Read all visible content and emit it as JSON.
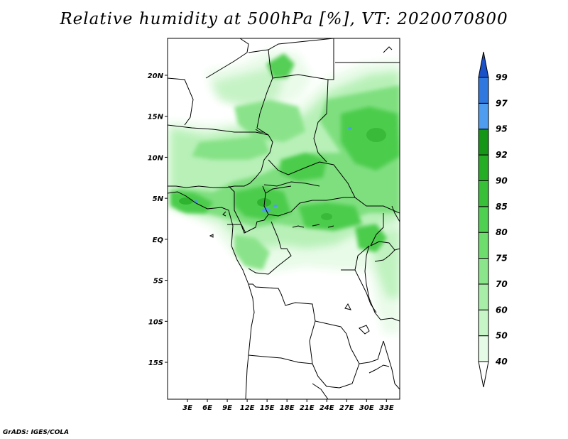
{
  "title": "Relative humidity at 500hPa [%], VT: 2020070800",
  "credit": "GrADS: IGES/COLA",
  "chart_data": {
    "type": "heatmap",
    "variable": "Relative humidity at 500hPa",
    "units": "%",
    "valid_time": "2020070800",
    "lon_range": [
      0,
      35
    ],
    "lat_range": [
      -19.5,
      24.5
    ],
    "lon_ticks": [
      "3E",
      "6E",
      "9E",
      "12E",
      "15E",
      "18E",
      "21E",
      "24E",
      "27E",
      "30E",
      "33E"
    ],
    "lat_ticks": [
      "20N",
      "15N",
      "10N",
      "5N",
      "EQ",
      "5S",
      "10S",
      "15S"
    ],
    "colorbar": {
      "levels": [
        "40",
        "50",
        "60",
        "70",
        "75",
        "80",
        "85",
        "90",
        "92",
        "95",
        "97",
        "99"
      ],
      "colors": [
        "#ffffff",
        "#e6fbe6",
        "#c8f5c8",
        "#a8eea8",
        "#8be58b",
        "#6ddd6d",
        "#50d050",
        "#38c038",
        "#26ad26",
        "#169616",
        "#4f9df0",
        "#2f78e0",
        "#1a50c8"
      ]
    },
    "features": {
      "coastline": "West and Central Africa",
      "humid_band": "Broad band of 60–90% RH between about 0N and 15N, highest over the Gulf of Guinea coast and east of 24E; dry (<40%) south of 5S."
    }
  }
}
